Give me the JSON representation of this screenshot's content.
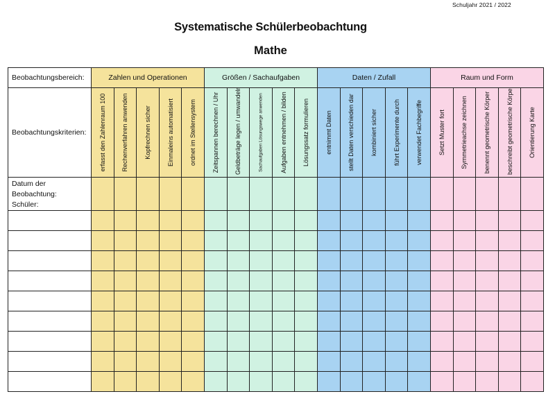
{
  "header": {
    "school_year": "Schuljahr 2021 / 2022",
    "title": "Systematische Schülerbeobachtung",
    "subject": "Mathe"
  },
  "table": {
    "area_label": "Beobachtungsbereich:",
    "criteria_label": "Beobachtungskriterien:",
    "date_label": "Datum der Beobachtung:",
    "student_label": "Schüler:",
    "student_rows": 9,
    "groups": [
      {
        "name": "Zahlen und Operationen",
        "color": "#f5e39c",
        "criteria": [
          "erfasst den Zahlenraum 100",
          "Rechenverfahren anwenden",
          "Kopfrechnen sicher",
          "Einmaleins automatisiert",
          "ordnet im Stellensystem"
        ]
      },
      {
        "name": "Größen / Sachaufgaben",
        "color": "#d0f2e2",
        "criteria": [
          "Zeitspannen berechnen / Uhr",
          "Geldbeträge legen / umwandeln",
          "Sachaufgaben Lösungswege anwenden",
          "Aufgaben entnehmen / bilden",
          "Lösungssatz formulieren"
        ]
      },
      {
        "name": "Daten / Zufall",
        "color": "#a8d3f2",
        "criteria": [
          "entnimmt Daten",
          "stellt Daten verschieden dar",
          "kombiniert sicher",
          "führt Experimente durch",
          "verwendet Fachbegriffe"
        ]
      },
      {
        "name": "Raum und Form",
        "color": "#fad5e6",
        "criteria": [
          "Setzt Muster fort",
          "Symmetrieachse zeichnen",
          "benennt geometrische Körper",
          "beschreibt geometrische Körper",
          "Orientierung Karte"
        ]
      }
    ]
  }
}
